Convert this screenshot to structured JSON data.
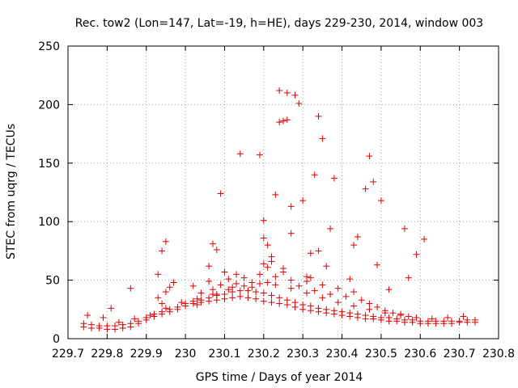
{
  "chart_data": {
    "type": "scatter",
    "title": "Rec. tow2 (Lon=147, Lat=-19, h=HE), days 229-230, 2014, window 003",
    "xlabel": "GPS time / Days of year 2014",
    "ylabel": "STEC from uqrg / TECUs",
    "xlim": [
      229.7,
      230.8
    ],
    "ylim": [
      0,
      250
    ],
    "xticks": [
      229.7,
      229.8,
      229.9,
      230.0,
      230.1,
      230.2,
      230.3,
      230.4,
      230.5,
      230.6,
      230.7,
      230.8
    ],
    "xtick_labels": [
      "229.7",
      "229.8",
      "229.9",
      "230",
      "230.1",
      "230.2",
      "230.3",
      "230.4",
      "230.5",
      "230.6",
      "230.7",
      "230.8"
    ],
    "yticks": [
      0,
      50,
      100,
      150,
      200,
      250
    ],
    "ytick_labels": [
      "0",
      "50",
      "100",
      "150",
      "200",
      "250"
    ],
    "grid": true,
    "marker": "+",
    "color": "#e00000",
    "series": [
      {
        "name": "STEC",
        "x": [
          229.74,
          229.76,
          229.78,
          229.8,
          229.82,
          229.84,
          229.86,
          229.88,
          229.9,
          229.92,
          229.94,
          229.96,
          229.98,
          230.0,
          230.02,
          230.04,
          230.06,
          230.08,
          230.1,
          230.12,
          230.14,
          230.16,
          230.18,
          230.2,
          230.22,
          230.24,
          230.26,
          230.28,
          230.3,
          230.32,
          230.34,
          230.36,
          230.38,
          230.4,
          230.42,
          230.44,
          230.46,
          230.48,
          230.5,
          230.52,
          230.54,
          230.56,
          230.58,
          230.6,
          230.62,
          230.64,
          230.66,
          230.68,
          230.7,
          230.72,
          230.74,
          229.74,
          229.76,
          229.78,
          229.8,
          229.82,
          229.84,
          229.86,
          229.88,
          229.9,
          229.92,
          229.94,
          229.96,
          229.98,
          230.0,
          230.02,
          230.04,
          230.06,
          230.08,
          230.1,
          230.12,
          230.14,
          230.16,
          230.18,
          230.2,
          230.22,
          230.24,
          230.26,
          230.28,
          230.3,
          230.32,
          230.34,
          230.36,
          230.38,
          230.4,
          230.42,
          230.44,
          230.46,
          230.48,
          230.5,
          230.52,
          230.54,
          230.56,
          230.58,
          230.6,
          230.62,
          230.64,
          230.66,
          230.68,
          230.7,
          230.72,
          230.74,
          229.75,
          229.79,
          229.83,
          229.87,
          229.91,
          229.95,
          229.99,
          230.03,
          230.07,
          230.11,
          230.15,
          230.19,
          230.23,
          230.27,
          230.31,
          230.35,
          230.39,
          230.43,
          230.47,
          230.51,
          230.55,
          230.59,
          230.63,
          230.67,
          230.71,
          229.93,
          229.94,
          229.95,
          229.96,
          229.97,
          230.02,
          230.04,
          230.06,
          230.07,
          230.09,
          230.11,
          230.13,
          230.15,
          230.17,
          230.19,
          230.21,
          230.23,
          230.25,
          230.27,
          230.29,
          230.31,
          230.33,
          230.35,
          230.37,
          230.39,
          230.41,
          230.43,
          230.45,
          230.47,
          230.49,
          230.51,
          230.53,
          230.55,
          230.57,
          229.86,
          229.81,
          229.94,
          229.95,
          229.93,
          230.06,
          230.07,
          230.08,
          230.09,
          230.1,
          230.13,
          230.14,
          230.19,
          230.2,
          230.2,
          230.21,
          230.22,
          230.23,
          230.24,
          230.24,
          230.25,
          230.26,
          230.26,
          230.27,
          230.28,
          230.29,
          230.3,
          230.32,
          230.33,
          230.34,
          230.35,
          230.37,
          230.38,
          230.43,
          230.44,
          230.46,
          230.47,
          230.48,
          230.5,
          230.56,
          230.59,
          230.61,
          230.57,
          230.52,
          230.2,
          230.21,
          230.22,
          230.25,
          230.31,
          230.32,
          230.36,
          230.42,
          230.49,
          230.17,
          230.12,
          230.08,
          230.03,
          230.27,
          230.34
        ],
        "y": [
          10,
          9,
          9,
          8,
          8,
          9,
          10,
          13,
          16,
          19,
          21,
          23,
          25,
          28,
          30,
          31,
          32,
          33,
          34,
          35,
          36,
          35,
          34,
          32,
          31,
          30,
          29,
          27,
          25,
          24,
          23,
          22,
          21,
          20,
          19,
          18,
          17,
          17,
          16,
          15,
          15,
          14,
          14,
          13,
          13,
          13,
          13,
          13,
          14,
          14,
          14,
          13,
          12,
          11,
          11,
          11,
          12,
          13,
          15,
          18,
          21,
          23,
          25,
          27,
          30,
          32,
          33,
          35,
          37,
          38,
          40,
          41,
          41,
          40,
          39,
          37,
          35,
          33,
          31,
          29,
          28,
          26,
          25,
          24,
          23,
          22,
          21,
          20,
          19,
          18,
          18,
          17,
          16,
          16,
          15,
          15,
          15,
          15,
          15,
          15,
          16,
          16,
          20,
          18,
          14,
          17,
          20,
          26,
          31,
          34,
          38,
          42,
          45,
          47,
          46,
          43,
          39,
          35,
          31,
          28,
          25,
          22,
          20,
          18,
          17,
          18,
          19,
          35,
          30,
          40,
          44,
          48,
          45,
          39,
          49,
          42,
          46,
          51,
          47,
          52,
          44,
          55,
          48,
          53,
          57,
          50,
          45,
          49,
          41,
          46,
          38,
          43,
          36,
          40,
          33,
          30,
          27,
          24,
          22,
          21,
          19,
          43,
          26,
          75,
          83,
          55,
          62,
          81,
          76,
          124,
          57,
          55,
          158,
          157,
          86,
          101,
          80,
          66,
          123,
          212,
          185,
          186,
          210,
          187,
          113,
          208,
          201,
          118,
          73,
          140,
          190,
          171,
          94,
          137,
          80,
          87,
          128,
          156,
          134,
          118,
          94,
          72,
          85,
          52,
          42,
          64,
          61,
          70,
          60,
          53,
          52,
          62,
          51,
          63,
          48,
          44,
          38,
          29,
          90,
          75
        ]
      }
    ]
  }
}
